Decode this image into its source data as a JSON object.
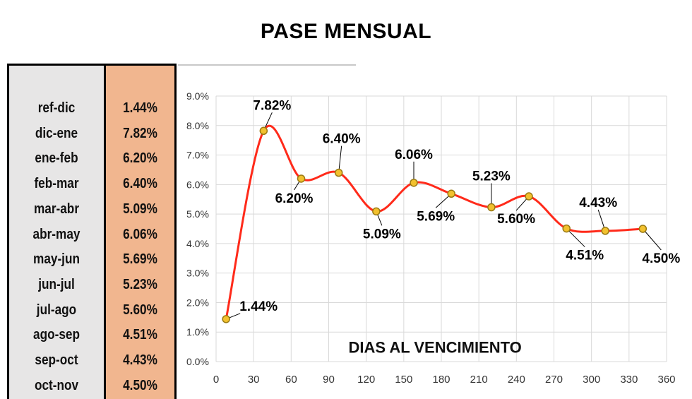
{
  "title": "PASE MENSUAL",
  "table": {
    "rows": [
      {
        "label": "ref-dic",
        "value": "1.44%"
      },
      {
        "label": "dic-ene",
        "value": "7.82%"
      },
      {
        "label": "ene-feb",
        "value": "6.20%"
      },
      {
        "label": "feb-mar",
        "value": "6.40%"
      },
      {
        "label": "mar-abr",
        "value": "5.09%"
      },
      {
        "label": "abr-may",
        "value": "6.06%"
      },
      {
        "label": "may-jun",
        "value": "5.69%"
      },
      {
        "label": "jun-jul",
        "value": "5.23%"
      },
      {
        "label": "jul-ago",
        "value": "5.60%"
      },
      {
        "label": "ago-sep",
        "value": "4.51%"
      },
      {
        "label": "sep-oct",
        "value": "4.43%"
      },
      {
        "label": "oct-nov",
        "value": "4.50%"
      }
    ]
  },
  "chart_data": {
    "type": "line",
    "title": "",
    "xlabel": "DIAS AL VENCIMIENTO",
    "ylabel": "",
    "xlim": [
      0,
      360
    ],
    "ylim": [
      0,
      9
    ],
    "x_ticks": [
      0,
      30,
      60,
      90,
      120,
      150,
      180,
      210,
      240,
      270,
      300,
      330,
      360
    ],
    "y_ticks": [
      "0.0%",
      "1.0%",
      "2.0%",
      "3.0%",
      "4.0%",
      "5.0%",
      "6.0%",
      "7.0%",
      "8.0%",
      "9.0%"
    ],
    "grid": true,
    "smooth": true,
    "line_color": "#ff2a1a",
    "marker_color": "#f2c12e",
    "series": [
      {
        "x": [
          8,
          38,
          68,
          98,
          128,
          158,
          188,
          220,
          250,
          280,
          311,
          341
        ],
        "y": [
          1.44,
          7.82,
          6.2,
          6.4,
          5.09,
          6.06,
          5.69,
          5.23,
          5.6,
          4.51,
          4.43,
          4.5
        ],
        "labels": [
          "1.44%",
          "7.82%",
          "6.20%",
          "6.40%",
          "5.09%",
          "6.06%",
          "5.69%",
          "5.23%",
          "5.60%",
          "4.51%",
          "4.43%",
          "4.50%"
        ]
      }
    ]
  }
}
